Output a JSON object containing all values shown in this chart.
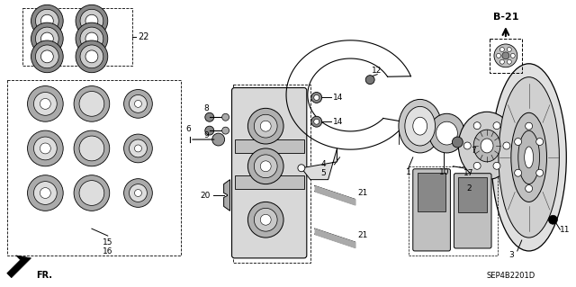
{
  "bg_color": "#ffffff",
  "line_color": "#000000",
  "drawing_id": "SEP4B2201D",
  "page_ref": "B-21",
  "figsize": [
    6.4,
    3.19
  ],
  "dpi": 100
}
